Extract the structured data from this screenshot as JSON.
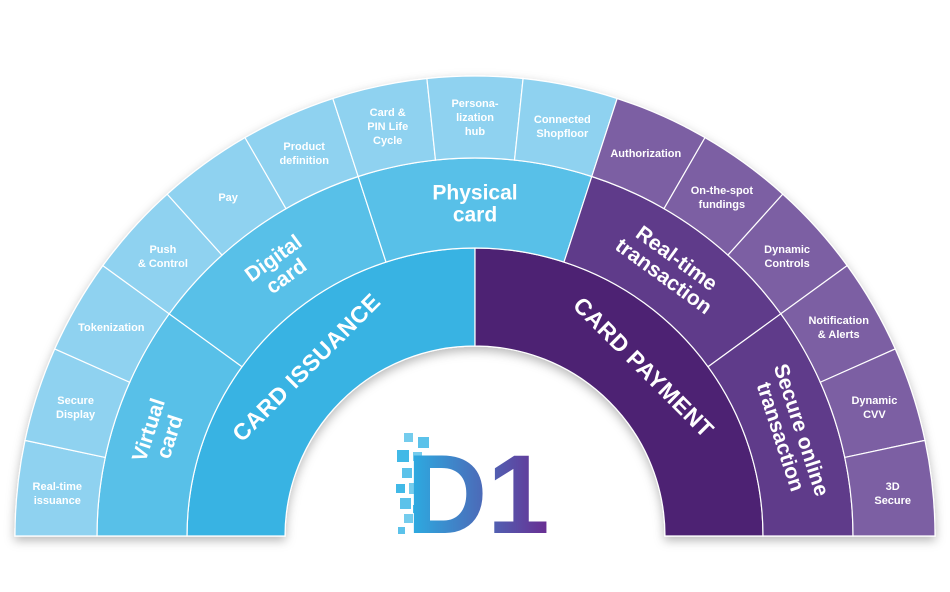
{
  "colors": {
    "issuance_inner": "#39b3e3",
    "issuance_mid": "#58c0e8",
    "issuance_outer": "#8fd2f0",
    "payment_inner": "#4d2473",
    "payment_mid": "#5f3a8a",
    "payment_outer": "#7c5ea3",
    "separator": "#ffffff",
    "logo_blue": "#2ab0e4",
    "logo_purple": "#6a2c91"
  },
  "inner_ring": [
    {
      "name": "card-issuance",
      "label": "CARD ISSUANCE"
    },
    {
      "name": "card-payment",
      "label": "CARD PAYMENT"
    }
  ],
  "middle_ring": [
    {
      "name": "virtual-card",
      "lines": [
        "Virtual",
        "card"
      ]
    },
    {
      "name": "digital-card",
      "lines": [
        "Digital",
        "card"
      ]
    },
    {
      "name": "physical-card",
      "lines": [
        "Physical",
        "card"
      ]
    },
    {
      "name": "real-time-transaction",
      "lines": [
        "Real-time",
        "transaction"
      ]
    },
    {
      "name": "secure-online-transaction",
      "lines": [
        "Secure online",
        "transaction"
      ]
    }
  ],
  "outer_ring": [
    {
      "name": "real-time-issuance",
      "lines": [
        "Real-time",
        "issuance"
      ]
    },
    {
      "name": "secure-display",
      "lines": [
        "Secure",
        "Display"
      ]
    },
    {
      "name": "tokenization",
      "lines": [
        "Tokenization"
      ]
    },
    {
      "name": "push-control",
      "lines": [
        "Push",
        "& Control"
      ]
    },
    {
      "name": "pay",
      "lines": [
        "Pay"
      ]
    },
    {
      "name": "product-definition",
      "lines": [
        "Product",
        "definition"
      ]
    },
    {
      "name": "card-pin-life-cycle",
      "lines": [
        "Card &",
        "PIN Life",
        "Cycle"
      ]
    },
    {
      "name": "personalization-hub",
      "lines": [
        "Persona-",
        "lization",
        "hub"
      ]
    },
    {
      "name": "connected-shopfloor",
      "lines": [
        "Connected",
        "Shopfloor"
      ]
    },
    {
      "name": "authorization",
      "lines": [
        "Authorization"
      ]
    },
    {
      "name": "on-the-spot-fundings",
      "lines": [
        "On-the-spot",
        "fundings"
      ]
    },
    {
      "name": "dynamic-controls",
      "lines": [
        "Dynamic",
        "Controls"
      ]
    },
    {
      "name": "notification-alerts",
      "lines": [
        "Notification",
        "& Alerts"
      ]
    },
    {
      "name": "dynamic-cvv",
      "lines": [
        "Dynamic",
        "CVV"
      ]
    },
    {
      "name": "3d-secure",
      "lines": [
        "3D",
        "Secure"
      ]
    }
  ],
  "logo": {
    "text": "D1"
  }
}
